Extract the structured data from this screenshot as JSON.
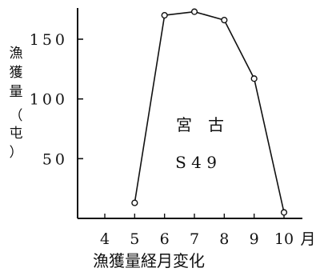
{
  "chart_data": {
    "type": "line",
    "title": "",
    "xlabel": "漁獲量経月変化",
    "x_unit": "月",
    "ylabel": "漁獲量（屯）",
    "x_ticks": [
      "4",
      "5",
      "6",
      "7",
      "8",
      "9",
      "10"
    ],
    "y_ticks": [
      "50",
      "100",
      "150"
    ],
    "xlim": [
      3.2,
      10.6
    ],
    "ylim": [
      0,
      185
    ],
    "grid": false,
    "legend": "none",
    "annotations": [
      "宮　古",
      "S 4 9"
    ],
    "series": [
      {
        "x": [
          5,
          6,
          7,
          8,
          9,
          10
        ],
        "y": [
          13,
          170,
          173,
          166,
          117,
          5
        ],
        "marker": "open-circle",
        "color": "#111111"
      }
    ]
  }
}
